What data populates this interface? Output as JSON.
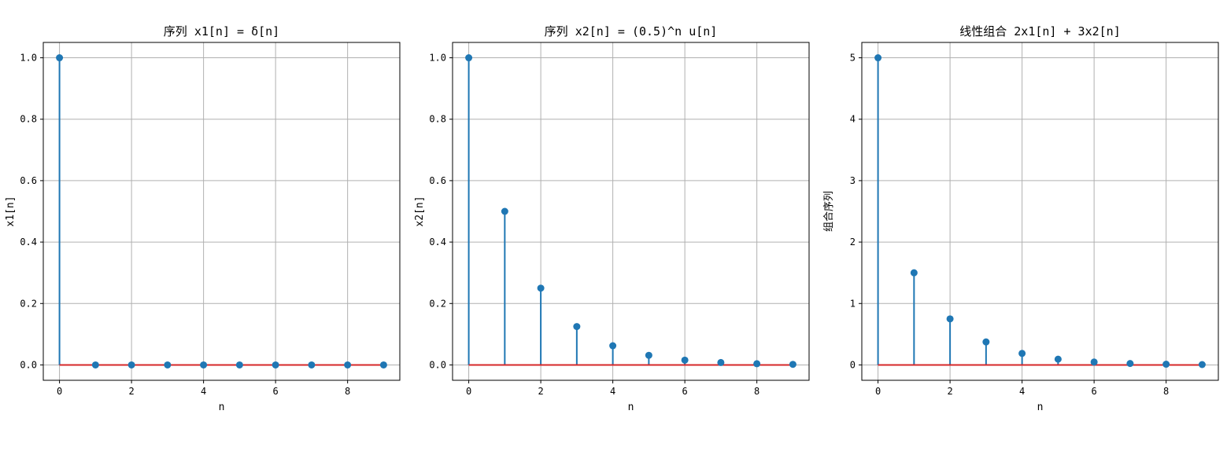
{
  "chart_data": [
    {
      "type": "stem",
      "title": "序列 x1[n] = δ[n]",
      "xlabel": "n",
      "ylabel": "x1[n]",
      "x": [
        0,
        1,
        2,
        3,
        4,
        5,
        6,
        7,
        8,
        9
      ],
      "values": [
        1,
        0,
        0,
        0,
        0,
        0,
        0,
        0,
        0,
        0
      ],
      "xlim": [
        -0.45,
        9.45
      ],
      "ylim": [
        -0.05,
        1.05
      ],
      "xticks": [
        0,
        2,
        4,
        6,
        8
      ],
      "yticks": [
        0.0,
        0.2,
        0.4,
        0.6,
        0.8,
        1.0
      ],
      "ytick_labels": [
        "0.0",
        "0.2",
        "0.4",
        "0.6",
        "0.8",
        "1.0"
      ],
      "grid": true
    },
    {
      "type": "stem",
      "title": "序列 x2[n] = (0.5)^n u[n]",
      "xlabel": "n",
      "ylabel": "x2[n]",
      "x": [
        0,
        1,
        2,
        3,
        4,
        5,
        6,
        7,
        8,
        9
      ],
      "values": [
        1,
        0.5,
        0.25,
        0.125,
        0.0625,
        0.03125,
        0.015625,
        0.0078125,
        0.00390625,
        0.001953125
      ],
      "xlim": [
        -0.45,
        9.45
      ],
      "ylim": [
        -0.05,
        1.05
      ],
      "xticks": [
        0,
        2,
        4,
        6,
        8
      ],
      "yticks": [
        0.0,
        0.2,
        0.4,
        0.6,
        0.8,
        1.0
      ],
      "ytick_labels": [
        "0.0",
        "0.2",
        "0.4",
        "0.6",
        "0.8",
        "1.0"
      ],
      "grid": true
    },
    {
      "type": "stem",
      "title": "线性组合 2x1[n] + 3x2[n]",
      "xlabel": "n",
      "ylabel": "组合序列",
      "x": [
        0,
        1,
        2,
        3,
        4,
        5,
        6,
        7,
        8,
        9
      ],
      "values": [
        5,
        1.5,
        0.75,
        0.375,
        0.1875,
        0.09375,
        0.046875,
        0.0234375,
        0.01171875,
        0.005859375
      ],
      "xlim": [
        -0.45,
        9.45
      ],
      "ylim": [
        -0.25,
        5.25
      ],
      "xticks": [
        0,
        2,
        4,
        6,
        8
      ],
      "yticks": [
        0,
        1,
        2,
        3,
        4,
        5
      ],
      "ytick_labels": [
        "0",
        "1",
        "2",
        "3",
        "4",
        "5"
      ],
      "grid": true
    }
  ],
  "colors": {
    "stem": "#1f77b4",
    "baseline": "#d62728",
    "grid": "#b0b0b0",
    "frame": "#000000"
  }
}
